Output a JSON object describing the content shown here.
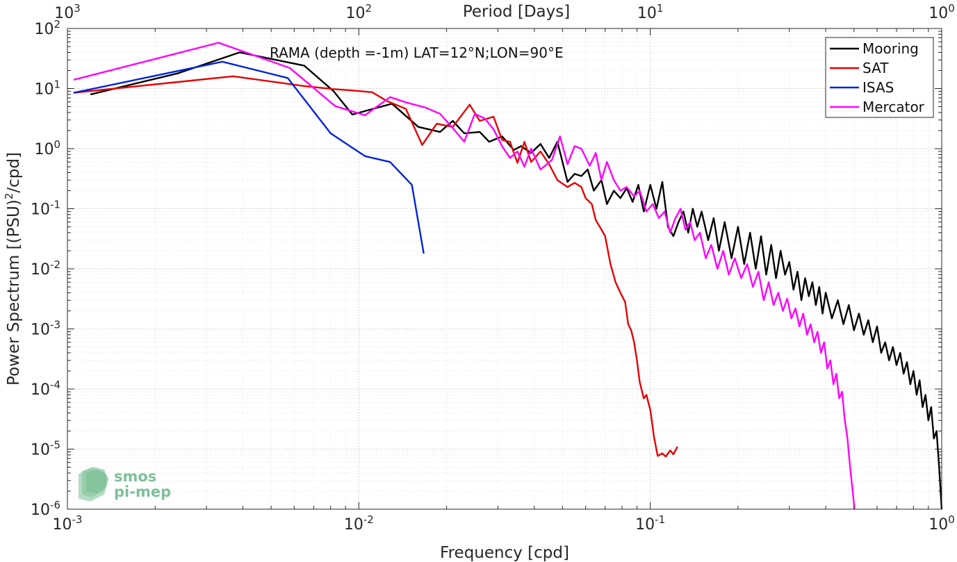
{
  "chart_data": {
    "type": "line",
    "title": "",
    "annotation": "RAMA (depth =-1m) LAT=12°N;LON=90°E",
    "xlabel": "Frequency [cpd]",
    "ylabel_pre": "Power Spectrum [(PSU)",
    "ylabel_sup": "2",
    "ylabel_post": "/cpd]",
    "top_xlabel": "Period [Days]",
    "xscale": "log",
    "yscale": "log",
    "xlim": [
      0.001,
      1
    ],
    "ylim": [
      1e-06,
      100
    ],
    "grid": true,
    "minor_grid": true,
    "legend_position": "top-right",
    "x_ticks": [
      {
        "value": 0.001,
        "base": "10",
        "exp": "-3"
      },
      {
        "value": 0.01,
        "base": "10",
        "exp": "-2"
      },
      {
        "value": 0.1,
        "base": "10",
        "exp": "-1"
      },
      {
        "value": 1,
        "base": "10",
        "exp": "0"
      }
    ],
    "top_ticks": [
      {
        "value": 0.001,
        "base": "10",
        "exp": "3"
      },
      {
        "value": 0.01,
        "base": "10",
        "exp": "2"
      },
      {
        "value": 0.1,
        "base": "10",
        "exp": "1"
      },
      {
        "value": 1,
        "base": "10",
        "exp": "0"
      }
    ],
    "y_ticks": [
      {
        "value": 100,
        "base": "10",
        "exp": "2"
      },
      {
        "value": 10,
        "base": "10",
        "exp": "1"
      },
      {
        "value": 1,
        "base": "10",
        "exp": "0"
      },
      {
        "value": 0.1,
        "base": "10",
        "exp": "-1"
      },
      {
        "value": 0.01,
        "base": "10",
        "exp": "-2"
      },
      {
        "value": 0.001,
        "base": "10",
        "exp": "-3"
      },
      {
        "value": 0.0001,
        "base": "10",
        "exp": "-4"
      },
      {
        "value": 1e-05,
        "base": "10",
        "exp": "-5"
      },
      {
        "value": 1e-06,
        "base": "10",
        "exp": "-6"
      }
    ],
    "series": [
      {
        "name": "Mooring",
        "color": "#000000",
        "points": [
          [
            0.0012,
            8
          ],
          [
            0.0024,
            18
          ],
          [
            0.0039,
            40
          ],
          [
            0.0065,
            24
          ],
          [
            0.0082,
            9
          ],
          [
            0.0095,
            3.7
          ],
          [
            0.011,
            4.5
          ],
          [
            0.013,
            5.6
          ],
          [
            0.016,
            2.3
          ],
          [
            0.019,
            1.9
          ],
          [
            0.021,
            2.9
          ],
          [
            0.023,
            1.8
          ],
          [
            0.026,
            1.9
          ],
          [
            0.028,
            1.3
          ],
          [
            0.031,
            1.6
          ],
          [
            0.034,
            0.95
          ],
          [
            0.036,
            1.1
          ],
          [
            0.039,
            0.85
          ],
          [
            0.042,
            1.2
          ],
          [
            0.045,
            0.7
          ],
          [
            0.048,
            1.3
          ],
          [
            0.052,
            0.28
          ],
          [
            0.055,
            0.38
          ],
          [
            0.058,
            0.35
          ],
          [
            0.061,
            0.45
          ],
          [
            0.064,
            0.2
          ],
          [
            0.068,
            0.3
          ],
          [
            0.071,
            0.12
          ],
          [
            0.075,
            0.2
          ],
          [
            0.079,
            0.15
          ],
          [
            0.083,
            0.22
          ],
          [
            0.087,
            0.13
          ],
          [
            0.091,
            0.25
          ],
          [
            0.095,
            0.09
          ],
          [
            0.1,
            0.25
          ],
          [
            0.105,
            0.1
          ],
          [
            0.11,
            0.28
          ],
          [
            0.115,
            0.05
          ],
          [
            0.12,
            0.035
          ],
          [
            0.125,
            0.06
          ],
          [
            0.13,
            0.09
          ],
          [
            0.135,
            0.04
          ],
          [
            0.14,
            0.1
          ],
          [
            0.145,
            0.05
          ],
          [
            0.15,
            0.09
          ],
          [
            0.158,
            0.03
          ],
          [
            0.165,
            0.07
          ],
          [
            0.172,
            0.02
          ],
          [
            0.18,
            0.06
          ],
          [
            0.19,
            0.015
          ],
          [
            0.2,
            0.05
          ],
          [
            0.21,
            0.012
          ],
          [
            0.22,
            0.04
          ],
          [
            0.23,
            0.01
          ],
          [
            0.24,
            0.035
          ],
          [
            0.25,
            0.008
          ],
          [
            0.26,
            0.025
          ],
          [
            0.27,
            0.007
          ],
          [
            0.28,
            0.02
          ],
          [
            0.29,
            0.008
          ],
          [
            0.3,
            0.013
          ],
          [
            0.31,
            0.0045
          ],
          [
            0.32,
            0.009
          ],
          [
            0.33,
            0.003
          ],
          [
            0.34,
            0.007
          ],
          [
            0.35,
            0.0035
          ],
          [
            0.36,
            0.006
          ],
          [
            0.37,
            0.0025
          ],
          [
            0.38,
            0.005
          ],
          [
            0.39,
            0.0018
          ],
          [
            0.4,
            0.004
          ],
          [
            0.42,
            0.0015
          ],
          [
            0.44,
            0.003
          ],
          [
            0.46,
            0.0012
          ],
          [
            0.48,
            0.0025
          ],
          [
            0.5,
            0.00095
          ],
          [
            0.52,
            0.0018
          ],
          [
            0.54,
            0.0008
          ],
          [
            0.56,
            0.0014
          ],
          [
            0.58,
            0.0006
          ],
          [
            0.6,
            0.0011
          ],
          [
            0.62,
            0.0004
          ],
          [
            0.64,
            0.0006
          ],
          [
            0.66,
            0.0003
          ],
          [
            0.68,
            0.0005
          ],
          [
            0.7,
            0.00025
          ],
          [
            0.72,
            0.0004
          ],
          [
            0.74,
            0.00018
          ],
          [
            0.76,
            0.00028
          ],
          [
            0.78,
            0.00012
          ],
          [
            0.8,
            0.0002
          ],
          [
            0.82,
            8e-05
          ],
          [
            0.84,
            0.00014
          ],
          [
            0.86,
            5e-05
          ],
          [
            0.88,
            8e-05
          ],
          [
            0.9,
            3e-05
          ],
          [
            0.92,
            5e-05
          ],
          [
            0.94,
            1.5e-05
          ],
          [
            0.96,
            2e-05
          ],
          [
            0.98,
            5e-06
          ],
          [
            1.0,
            1e-06
          ]
        ]
      },
      {
        "name": "SAT",
        "color": "#e60000",
        "points": [
          [
            0.00105,
            8.5
          ],
          [
            0.0037,
            16
          ],
          [
            0.0065,
            11
          ],
          [
            0.0082,
            9.8
          ],
          [
            0.0095,
            9.3
          ],
          [
            0.0111,
            8.7
          ],
          [
            0.0125,
            6.2
          ],
          [
            0.0145,
            4.6
          ],
          [
            0.0165,
            1.15
          ],
          [
            0.0185,
            2.6
          ],
          [
            0.021,
            2.3
          ],
          [
            0.024,
            5.4
          ],
          [
            0.026,
            2.9
          ],
          [
            0.029,
            3.4
          ],
          [
            0.031,
            1.4
          ],
          [
            0.033,
            1.3
          ],
          [
            0.035,
            0.58
          ],
          [
            0.037,
            1.3
          ],
          [
            0.039,
            0.6
          ],
          [
            0.042,
            0.9
          ],
          [
            0.045,
            0.55
          ],
          [
            0.048,
            0.3
          ],
          [
            0.052,
            0.23
          ],
          [
            0.055,
            0.27
          ],
          [
            0.058,
            0.23
          ],
          [
            0.06,
            0.15
          ],
          [
            0.063,
            0.12
          ],
          [
            0.065,
            0.065
          ],
          [
            0.068,
            0.045
          ],
          [
            0.07,
            0.035
          ],
          [
            0.073,
            0.012
          ],
          [
            0.076,
            0.006
          ],
          [
            0.079,
            0.004
          ],
          [
            0.082,
            0.0028
          ],
          [
            0.084,
            0.0012
          ],
          [
            0.086,
            0.00095
          ],
          [
            0.088,
            0.0006
          ],
          [
            0.09,
            0.0003
          ],
          [
            0.092,
            0.00013
          ],
          [
            0.095,
            7e-05
          ],
          [
            0.097,
            8e-05
          ],
          [
            0.1,
            4.5e-05
          ],
          [
            0.103,
            1.6e-05
          ],
          [
            0.106,
            7.7e-06
          ],
          [
            0.11,
            8.5e-06
          ],
          [
            0.113,
            7.5e-06
          ],
          [
            0.117,
            9.5e-06
          ],
          [
            0.12,
            8.2e-06
          ],
          [
            0.124,
            1.1e-05
          ]
        ]
      },
      {
        "name": "ISAS",
        "color": "#0022dd",
        "points": [
          [
            0.00105,
            8.5
          ],
          [
            0.0034,
            28
          ],
          [
            0.0057,
            15
          ],
          [
            0.008,
            1.8
          ],
          [
            0.0105,
            0.75
          ],
          [
            0.0128,
            0.6
          ],
          [
            0.0152,
            0.25
          ],
          [
            0.0167,
            0.018
          ]
        ]
      },
      {
        "name": "Mercator",
        "color": "#ff00ff",
        "points": [
          [
            0.00105,
            14
          ],
          [
            0.0033,
            58
          ],
          [
            0.0058,
            22
          ],
          [
            0.0083,
            5.1
          ],
          [
            0.0105,
            3.6
          ],
          [
            0.0128,
            7.2
          ],
          [
            0.0145,
            5.9
          ],
          [
            0.017,
            4.8
          ],
          [
            0.019,
            3.8
          ],
          [
            0.021,
            2.2
          ],
          [
            0.023,
            1.3
          ],
          [
            0.025,
            3.8
          ],
          [
            0.027,
            3.2
          ],
          [
            0.029,
            2.1
          ],
          [
            0.031,
            1.1
          ],
          [
            0.033,
            0.7
          ],
          [
            0.035,
            0.9
          ],
          [
            0.037,
            0.5
          ],
          [
            0.039,
            1.0
          ],
          [
            0.042,
            0.45
          ],
          [
            0.046,
            0.65
          ],
          [
            0.049,
            1.6
          ],
          [
            0.052,
            0.55
          ],
          [
            0.055,
            1.1
          ],
          [
            0.058,
            1.0
          ],
          [
            0.062,
            0.52
          ],
          [
            0.065,
            0.85
          ],
          [
            0.068,
            0.3
          ],
          [
            0.071,
            0.6
          ],
          [
            0.075,
            0.3
          ],
          [
            0.079,
            0.2
          ],
          [
            0.083,
            0.23
          ],
          [
            0.088,
            0.16
          ],
          [
            0.092,
            0.2
          ],
          [
            0.097,
            0.09
          ],
          [
            0.102,
            0.12
          ],
          [
            0.107,
            0.07
          ],
          [
            0.112,
            0.09
          ],
          [
            0.117,
            0.04
          ],
          [
            0.122,
            0.07
          ],
          [
            0.127,
            0.1
          ],
          [
            0.132,
            0.045
          ],
          [
            0.137,
            0.06
          ],
          [
            0.142,
            0.03
          ],
          [
            0.148,
            0.04
          ],
          [
            0.155,
            0.015
          ],
          [
            0.162,
            0.025
          ],
          [
            0.17,
            0.01
          ],
          [
            0.178,
            0.02
          ],
          [
            0.186,
            0.008
          ],
          [
            0.195,
            0.015
          ],
          [
            0.205,
            0.007
          ],
          [
            0.215,
            0.012
          ],
          [
            0.225,
            0.005
          ],
          [
            0.235,
            0.009
          ],
          [
            0.245,
            0.003
          ],
          [
            0.255,
            0.006
          ],
          [
            0.265,
            0.0025
          ],
          [
            0.275,
            0.004
          ],
          [
            0.285,
            0.002
          ],
          [
            0.295,
            0.0032
          ],
          [
            0.305,
            0.0015
          ],
          [
            0.315,
            0.0022
          ],
          [
            0.325,
            0.0011
          ],
          [
            0.335,
            0.0018
          ],
          [
            0.345,
            0.0008
          ],
          [
            0.355,
            0.0012
          ],
          [
            0.365,
            0.0006
          ],
          [
            0.375,
            0.0009
          ],
          [
            0.385,
            0.0004
          ],
          [
            0.395,
            0.0006
          ],
          [
            0.405,
            0.00022
          ],
          [
            0.415,
            0.0003
          ],
          [
            0.425,
            0.00012
          ],
          [
            0.435,
            0.00018
          ],
          [
            0.445,
            7e-05
          ],
          [
            0.455,
            9e-05
          ],
          [
            0.465,
            3e-05
          ],
          [
            0.475,
            1.5e-05
          ],
          [
            0.485,
            5e-06
          ],
          [
            0.495,
            2e-06
          ],
          [
            0.502,
            1e-06
          ]
        ]
      }
    ]
  },
  "watermark": {
    "line1": "smos",
    "line2": "pi-mep"
  }
}
